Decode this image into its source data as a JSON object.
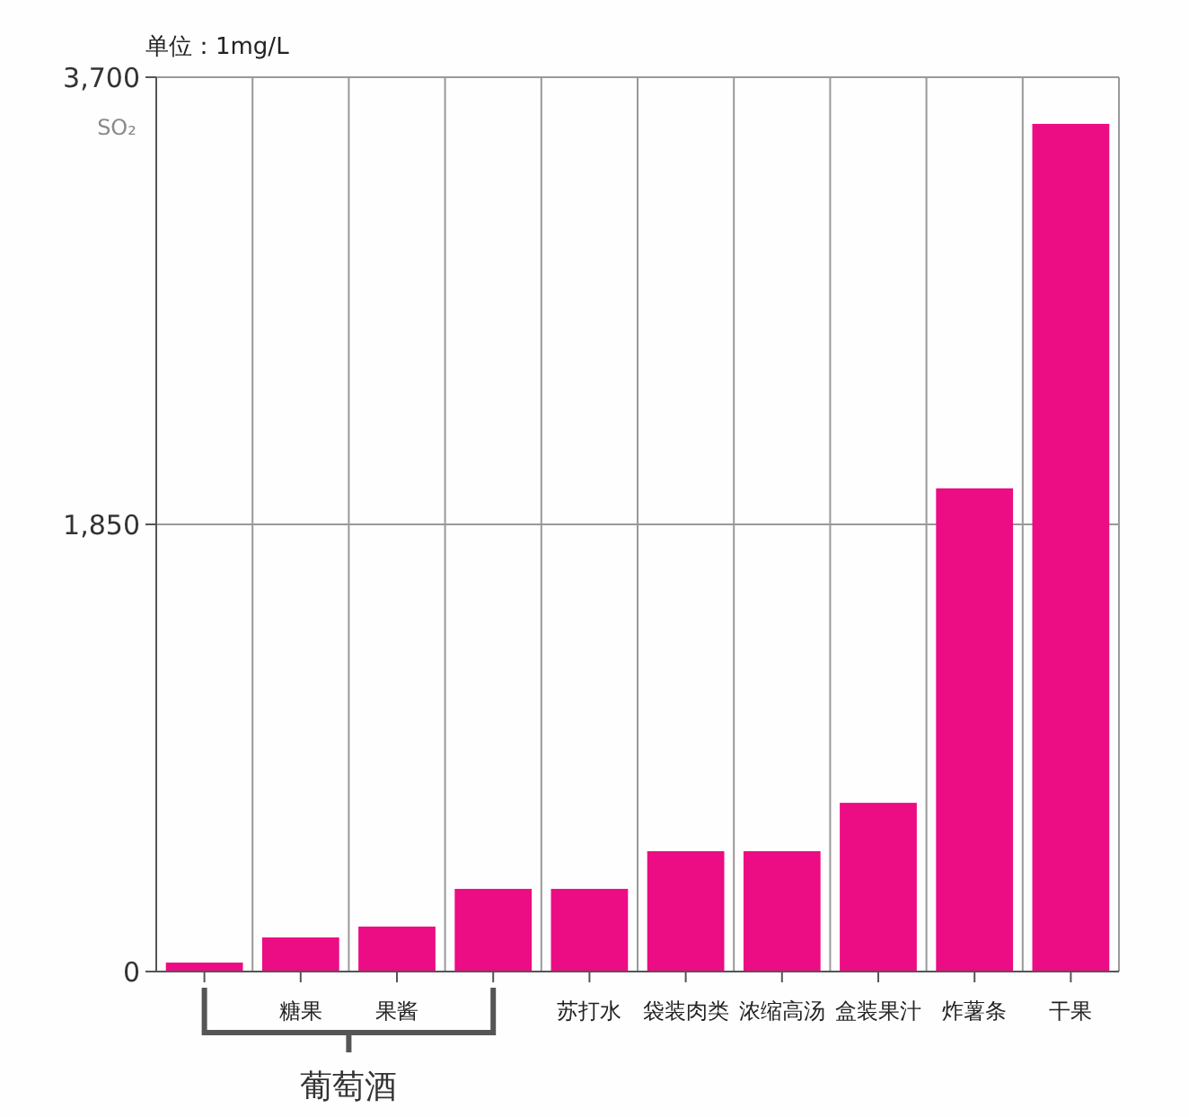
{
  "chart_data": {
    "type": "bar",
    "categories": [
      null,
      "糖果",
      "果酱",
      null,
      "苏打水",
      "袋装肉类",
      "浓缩高汤",
      "盒装果汁",
      "炸薯条",
      "干果"
    ],
    "values": [
      37,
      141,
      186,
      342,
      342,
      498,
      498,
      698,
      1999,
      3507
    ],
    "color": "#ec0c84",
    "ylim": [
      0,
      3700
    ],
    "yticks": [
      0,
      {
        "value": 1850,
        "label": "1,850"
      },
      {
        "value": 3700,
        "label": "3,700"
      }
    ],
    "grid": true,
    "annotations": [
      "单位：1mg/L",
      "SO₂",
      "葡萄酒"
    ]
  }
}
